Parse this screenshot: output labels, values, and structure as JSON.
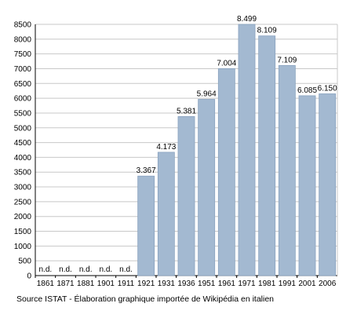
{
  "chart_data": {
    "type": "bar",
    "categories": [
      "1861",
      "1871",
      "1881",
      "1901",
      "1911",
      "1921",
      "1931",
      "1936",
      "1951",
      "1961",
      "1971",
      "1981",
      "1991",
      "2001",
      "2006"
    ],
    "values": [
      null,
      null,
      null,
      null,
      null,
      3367,
      4173,
      5381,
      5964,
      7004,
      8499,
      8109,
      7109,
      6085,
      6150
    ],
    "data_labels": [
      "n.d.",
      "n.d.",
      "n.d.",
      "n.d.",
      "n.d.",
      "3.367",
      "4.173",
      "5.381",
      "5.964",
      "7.004",
      "8.499",
      "8.109",
      "7.109",
      "6.085",
      "6.150"
    ],
    "y_ticks": [
      "0",
      "500",
      "1000",
      "1500",
      "2000",
      "2500",
      "3000",
      "3500",
      "4000",
      "4500",
      "5000",
      "5500",
      "6000",
      "6500",
      "7000",
      "7500",
      "8000",
      "8500"
    ],
    "ylim": [
      0,
      8500
    ],
    "grid": true,
    "bar_color": "#a3b9d1",
    "bar_edge_color": "#8aa3bf",
    "grid_color": "#c8c8c8"
  },
  "source_text": "Source ISTAT - Élaboration graphique importée de Wikipédia en italien"
}
